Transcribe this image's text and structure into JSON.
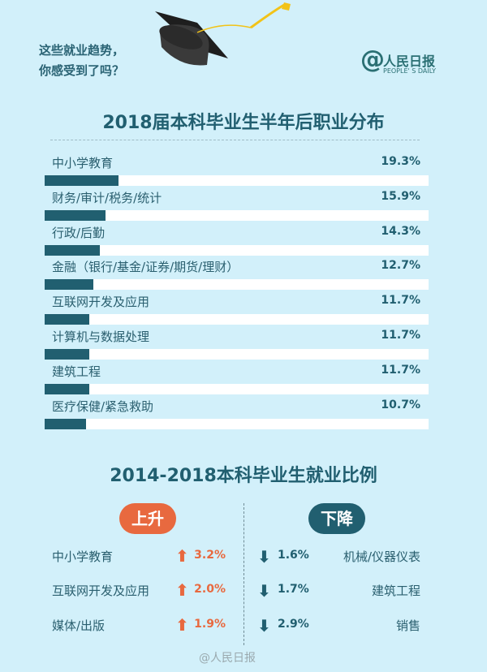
{
  "header": {
    "intro_line1": "这些就业趋势，",
    "intro_line2": "你感受到了吗？",
    "logo_name": "人民日报",
    "logo_en": "PEOPLE' S DAILY"
  },
  "colors": {
    "background": "#d2f0fa",
    "bar": "#215f70",
    "track": "#ffffff",
    "rise": "#e8693f",
    "fall": "#215f70"
  },
  "chart_data": {
    "type": "bar",
    "orientation": "horizontal",
    "title": "2018届本科毕业生半年后职业分布",
    "unit": "%",
    "xlim": [
      0,
      100
    ],
    "categories": [
      "中小学教育",
      "财务/审计/税务/统计",
      "行政/后勤",
      "金融（银行/基金/证券/期货/理财）",
      "互联网开发及应用",
      "计算机与数据处理",
      "建筑工程",
      "医疗保健/紧急救助"
    ],
    "values": [
      19.3,
      15.9,
      14.3,
      12.7,
      11.7,
      11.7,
      11.7,
      10.7
    ],
    "labels": [
      "19.3%",
      "15.9%",
      "14.3%",
      "12.7%",
      "11.7%",
      "11.7%",
      "11.7%",
      "10.7%"
    ]
  },
  "trend": {
    "title": "2014-2018本科毕业生就业比例",
    "rise_label": "上升",
    "fall_label": "下降",
    "rise": [
      {
        "name": "中小学教育",
        "value": "3.2%"
      },
      {
        "name": "互联网开发及应用",
        "value": "2.0%"
      },
      {
        "name": "媒体/出版",
        "value": "1.9%"
      }
    ],
    "fall": [
      {
        "name": "机械/仪器仪表",
        "value": "1.6%"
      },
      {
        "name": "建筑工程",
        "value": "1.7%"
      },
      {
        "name": "销售",
        "value": "2.9%"
      }
    ]
  },
  "watermark": "@人民日报"
}
